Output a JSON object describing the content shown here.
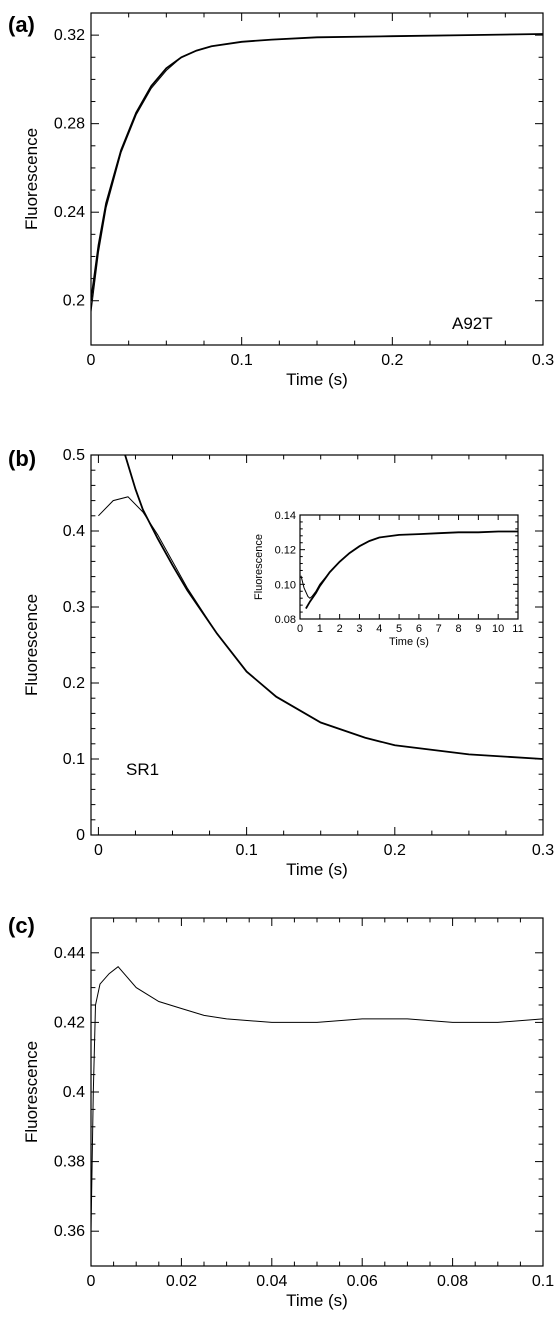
{
  "chart_data": [
    {
      "panel": "(a)",
      "type": "line",
      "xlabel": "Time (s)",
      "ylabel": "Fluorescence",
      "xlim": [
        0,
        0.3
      ],
      "ylim": [
        0.18,
        0.33
      ],
      "xticks": [
        0,
        0.1,
        0.2,
        0.3
      ],
      "xtick_labels": [
        "0",
        "0.1",
        "0.2",
        "0.3"
      ],
      "yticks": [
        0.2,
        0.24,
        0.28,
        0.32
      ],
      "ytick_labels": [
        "0.2",
        "0.24",
        "0.28",
        "0.32"
      ],
      "annotation": "A92T",
      "series": [
        {
          "role": "trace",
          "x": [
            0,
            0.005,
            0.01,
            0.02,
            0.03,
            0.04,
            0.05,
            0.06,
            0.07,
            0.08,
            0.1,
            0.12,
            0.15,
            0.2,
            0.25,
            0.3
          ],
          "y": [
            0.195,
            0.222,
            0.242,
            0.267,
            0.284,
            0.296,
            0.304,
            0.31,
            0.313,
            0.315,
            0.317,
            0.318,
            0.319,
            0.3195,
            0.32,
            0.3205
          ]
        },
        {
          "role": "fit",
          "x": [
            0,
            0.005,
            0.01,
            0.02,
            0.03,
            0.04,
            0.05,
            0.06,
            0.07,
            0.08,
            0.1,
            0.12,
            0.15,
            0.2,
            0.25,
            0.3
          ],
          "y": [
            0.2,
            0.225,
            0.244,
            0.268,
            0.285,
            0.297,
            0.305,
            0.31,
            0.313,
            0.315,
            0.317,
            0.318,
            0.319,
            0.3195,
            0.32,
            0.3205
          ]
        }
      ]
    },
    {
      "panel": "(b)",
      "type": "line",
      "xlabel": "Time (s)",
      "ylabel": "Fluorescence",
      "xlim": [
        -0.005,
        0.3
      ],
      "ylim": [
        0,
        0.5
      ],
      "xticks": [
        0,
        0.1,
        0.2,
        0.3
      ],
      "xtick_labels": [
        "0",
        "0.1",
        "0.2",
        "0.3"
      ],
      "yticks": [
        0,
        0.1,
        0.2,
        0.3,
        0.4,
        0.5
      ],
      "ytick_labels": [
        "0",
        "0.1",
        "0.2",
        "0.3",
        "0.4",
        "0.5"
      ],
      "annotation": "SR1",
      "series": [
        {
          "role": "trace",
          "x": [
            0,
            0.01,
            0.02,
            0.03,
            0.04,
            0.05,
            0.06,
            0.08,
            0.1,
            0.12,
            0.15,
            0.18,
            0.2,
            0.25,
            0.3
          ],
          "y": [
            0.42,
            0.44,
            0.445,
            0.425,
            0.395,
            0.36,
            0.325,
            0.265,
            0.215,
            0.182,
            0.148,
            0.128,
            0.118,
            0.106,
            0.1
          ]
        },
        {
          "role": "fit",
          "x": [
            0.018,
            0.025,
            0.03,
            0.04,
            0.05,
            0.06,
            0.08,
            0.1,
            0.12,
            0.15,
            0.18,
            0.2,
            0.25,
            0.3
          ],
          "y": [
            0.5,
            0.455,
            0.428,
            0.39,
            0.355,
            0.322,
            0.265,
            0.215,
            0.182,
            0.148,
            0.128,
            0.118,
            0.106,
            0.1
          ]
        }
      ],
      "inset": {
        "type": "line",
        "xlabel": "Time (s)",
        "ylabel": "Fluorescence",
        "xlim": [
          0,
          11
        ],
        "ylim": [
          0.08,
          0.14
        ],
        "xticks": [
          0,
          1,
          2,
          3,
          4,
          5,
          6,
          7,
          8,
          9,
          10,
          11
        ],
        "xtick_labels": [
          "0",
          "1",
          "2",
          "3",
          "4",
          "5",
          "6",
          "7",
          "8",
          "9",
          "10",
          "11"
        ],
        "yticks": [
          0.08,
          0.1,
          0.12,
          0.14
        ],
        "ytick_labels": [
          "0.08",
          "0.10",
          "0.12",
          "0.14"
        ],
        "series": [
          {
            "role": "trace",
            "x": [
              0.05,
              0.2,
              0.4,
              0.5,
              0.6,
              0.8,
              1.0,
              1.5,
              2.0,
              2.5,
              3.0,
              3.5,
              4.0,
              5.0,
              6.0,
              7.0,
              8.0,
              9.0,
              10.0,
              11.0
            ],
            "y": [
              0.105,
              0.098,
              0.093,
              0.092,
              0.093,
              0.096,
              0.1,
              0.107,
              0.113,
              0.118,
              0.122,
              0.125,
              0.127,
              0.1285,
              0.129,
              0.1295,
              0.13,
              0.13,
              0.1305,
              0.1305
            ]
          },
          {
            "role": "fit",
            "x": [
              0.3,
              0.5,
              0.8,
              1.0,
              1.5,
              2.0,
              2.5,
              3.0,
              3.5,
              4.0,
              5.0,
              6.0,
              7.0,
              8.0,
              9.0,
              10.0,
              11.0
            ],
            "y": [
              0.086,
              0.09,
              0.095,
              0.099,
              0.107,
              0.113,
              0.118,
              0.122,
              0.125,
              0.127,
              0.1285,
              0.129,
              0.1295,
              0.13,
              0.13,
              0.1305,
              0.1305
            ]
          }
        ]
      }
    },
    {
      "panel": "(c)",
      "type": "line",
      "xlabel": "Time (s)",
      "ylabel": "Fluorescence",
      "xlim": [
        0,
        0.1
      ],
      "ylim": [
        0.35,
        0.45
      ],
      "xticks": [
        0,
        0.02,
        0.04,
        0.06,
        0.08,
        0.1
      ],
      "xtick_labels": [
        "0",
        "0.02",
        "0.04",
        "0.06",
        "0.08",
        "0.1"
      ],
      "yticks": [
        0.36,
        0.38,
        0.4,
        0.42,
        0.44
      ],
      "ytick_labels": [
        "0.36",
        "0.38",
        "0.4",
        "0.42",
        "0.44"
      ],
      "series": [
        {
          "role": "trace",
          "x": [
            0,
            0.0005,
            0.001,
            0.002,
            0.004,
            0.006,
            0.008,
            0.01,
            0.015,
            0.02,
            0.025,
            0.03,
            0.04,
            0.05,
            0.06,
            0.07,
            0.08,
            0.09,
            0.1
          ],
          "y": [
            0.36,
            0.4,
            0.425,
            0.431,
            0.434,
            0.436,
            0.433,
            0.43,
            0.426,
            0.424,
            0.422,
            0.421,
            0.42,
            0.42,
            0.421,
            0.421,
            0.42,
            0.42,
            0.421
          ]
        }
      ]
    }
  ]
}
